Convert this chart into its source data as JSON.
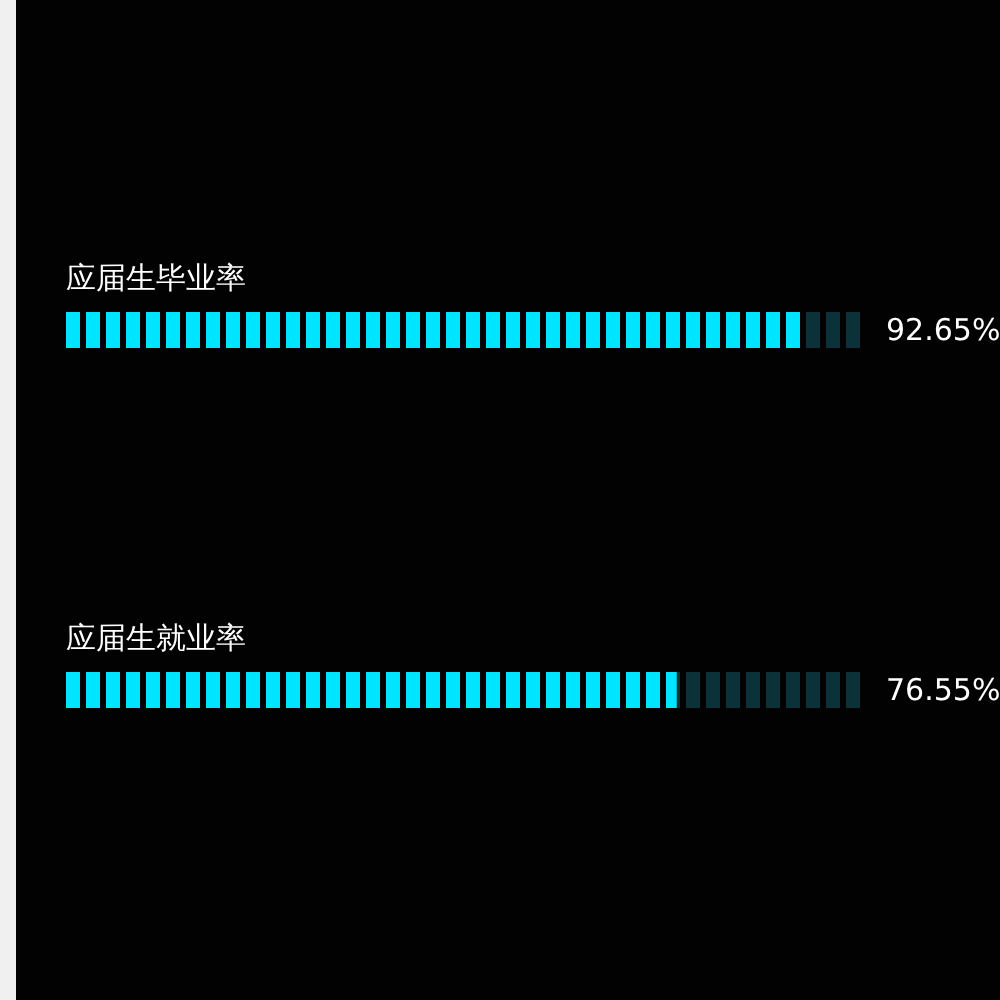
{
  "chart_data": {
    "type": "bar",
    "orientation": "horizontal",
    "stacked": true,
    "categories": [
      "应届生毕业率",
      "应届生就业率"
    ],
    "series": [
      {
        "color": "#00e5ff",
        "values": [
          92.65,
          76.55
        ],
        "value_labels": [
          "92.65%",
          "76.55%"
        ]
      },
      {
        "color": "#0a3238",
        "values": [
          7.35,
          23.45
        ]
      }
    ],
    "xlim": [
      0,
      100
    ]
  }
}
